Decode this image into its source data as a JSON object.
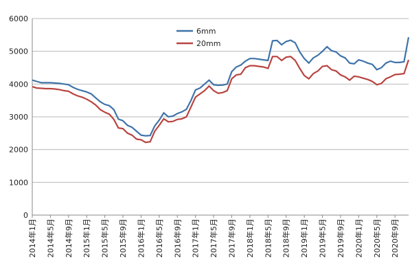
{
  "chart_data": {
    "type": "line",
    "categories": [
      "2014年1月",
      null,
      null,
      null,
      "2014年5月",
      null,
      null,
      null,
      "2014年9月",
      null,
      null,
      null,
      "2015年1月",
      null,
      null,
      null,
      "2015年5月",
      null,
      null,
      null,
      "2015年9月",
      null,
      null,
      null,
      "2016年1月",
      null,
      null,
      null,
      "2016年5月",
      null,
      null,
      null,
      "2016年9月",
      null,
      null,
      null,
      "2017年1月",
      null,
      null,
      null,
      "2017年5月",
      null,
      null,
      null,
      "2017年9月",
      null,
      null,
      null,
      "2018年1月",
      null,
      null,
      null,
      "2018年5月",
      null,
      null,
      null,
      "2018年9月",
      null,
      null,
      null,
      "2019年1月",
      null,
      null,
      null,
      "2019年5月",
      null,
      null,
      null,
      "2019年9月",
      null,
      null,
      null,
      "2020年1月",
      null,
      null,
      null,
      "2020年5月",
      null,
      null,
      null,
      "2020年9月",
      null,
      null,
      null
    ],
    "series": [
      {
        "name": "6mm",
        "color": "#3f73a8",
        "values": [
          4120,
          4080,
          4040,
          4040,
          4040,
          4030,
          4020,
          4000,
          3980,
          3900,
          3840,
          3800,
          3760,
          3700,
          3580,
          3460,
          3380,
          3340,
          3220,
          2930,
          2880,
          2740,
          2680,
          2560,
          2440,
          2420,
          2430,
          2720,
          2900,
          3120,
          3000,
          3020,
          3100,
          3150,
          3230,
          3500,
          3820,
          3880,
          4000,
          4120,
          3980,
          3960,
          3970,
          4000,
          4380,
          4520,
          4580,
          4700,
          4780,
          4780,
          4760,
          4740,
          4720,
          5320,
          5330,
          5200,
          5300,
          5340,
          5260,
          4980,
          4780,
          4640,
          4800,
          4880,
          5000,
          5140,
          5020,
          4980,
          4860,
          4800,
          4640,
          4620,
          4740,
          4700,
          4640,
          4600,
          4440,
          4500,
          4640,
          4700,
          4660,
          4660,
          4680,
          5430
        ]
      },
      {
        "name": "20mm",
        "color": "#b84440",
        "values": [
          3920,
          3880,
          3870,
          3860,
          3860,
          3850,
          3830,
          3800,
          3780,
          3700,
          3640,
          3600,
          3540,
          3460,
          3360,
          3220,
          3140,
          3080,
          2920,
          2660,
          2640,
          2500,
          2440,
          2320,
          2300,
          2220,
          2240,
          2560,
          2740,
          2940,
          2850,
          2860,
          2920,
          2940,
          3000,
          3300,
          3600,
          3700,
          3800,
          3940,
          3800,
          3720,
          3740,
          3800,
          4160,
          4280,
          4300,
          4500,
          4560,
          4560,
          4540,
          4520,
          4480,
          4840,
          4840,
          4720,
          4820,
          4840,
          4720,
          4480,
          4260,
          4160,
          4320,
          4400,
          4540,
          4560,
          4440,
          4400,
          4280,
          4220,
          4120,
          4240,
          4220,
          4180,
          4140,
          4080,
          3980,
          4020,
          4160,
          4220,
          4290,
          4300,
          4320,
          4740
        ]
      }
    ],
    "ylim": [
      0,
      6000
    ],
    "yticks": [
      0,
      1000,
      2000,
      3000,
      4000,
      5000,
      6000
    ],
    "grid": true,
    "legend": "top"
  }
}
